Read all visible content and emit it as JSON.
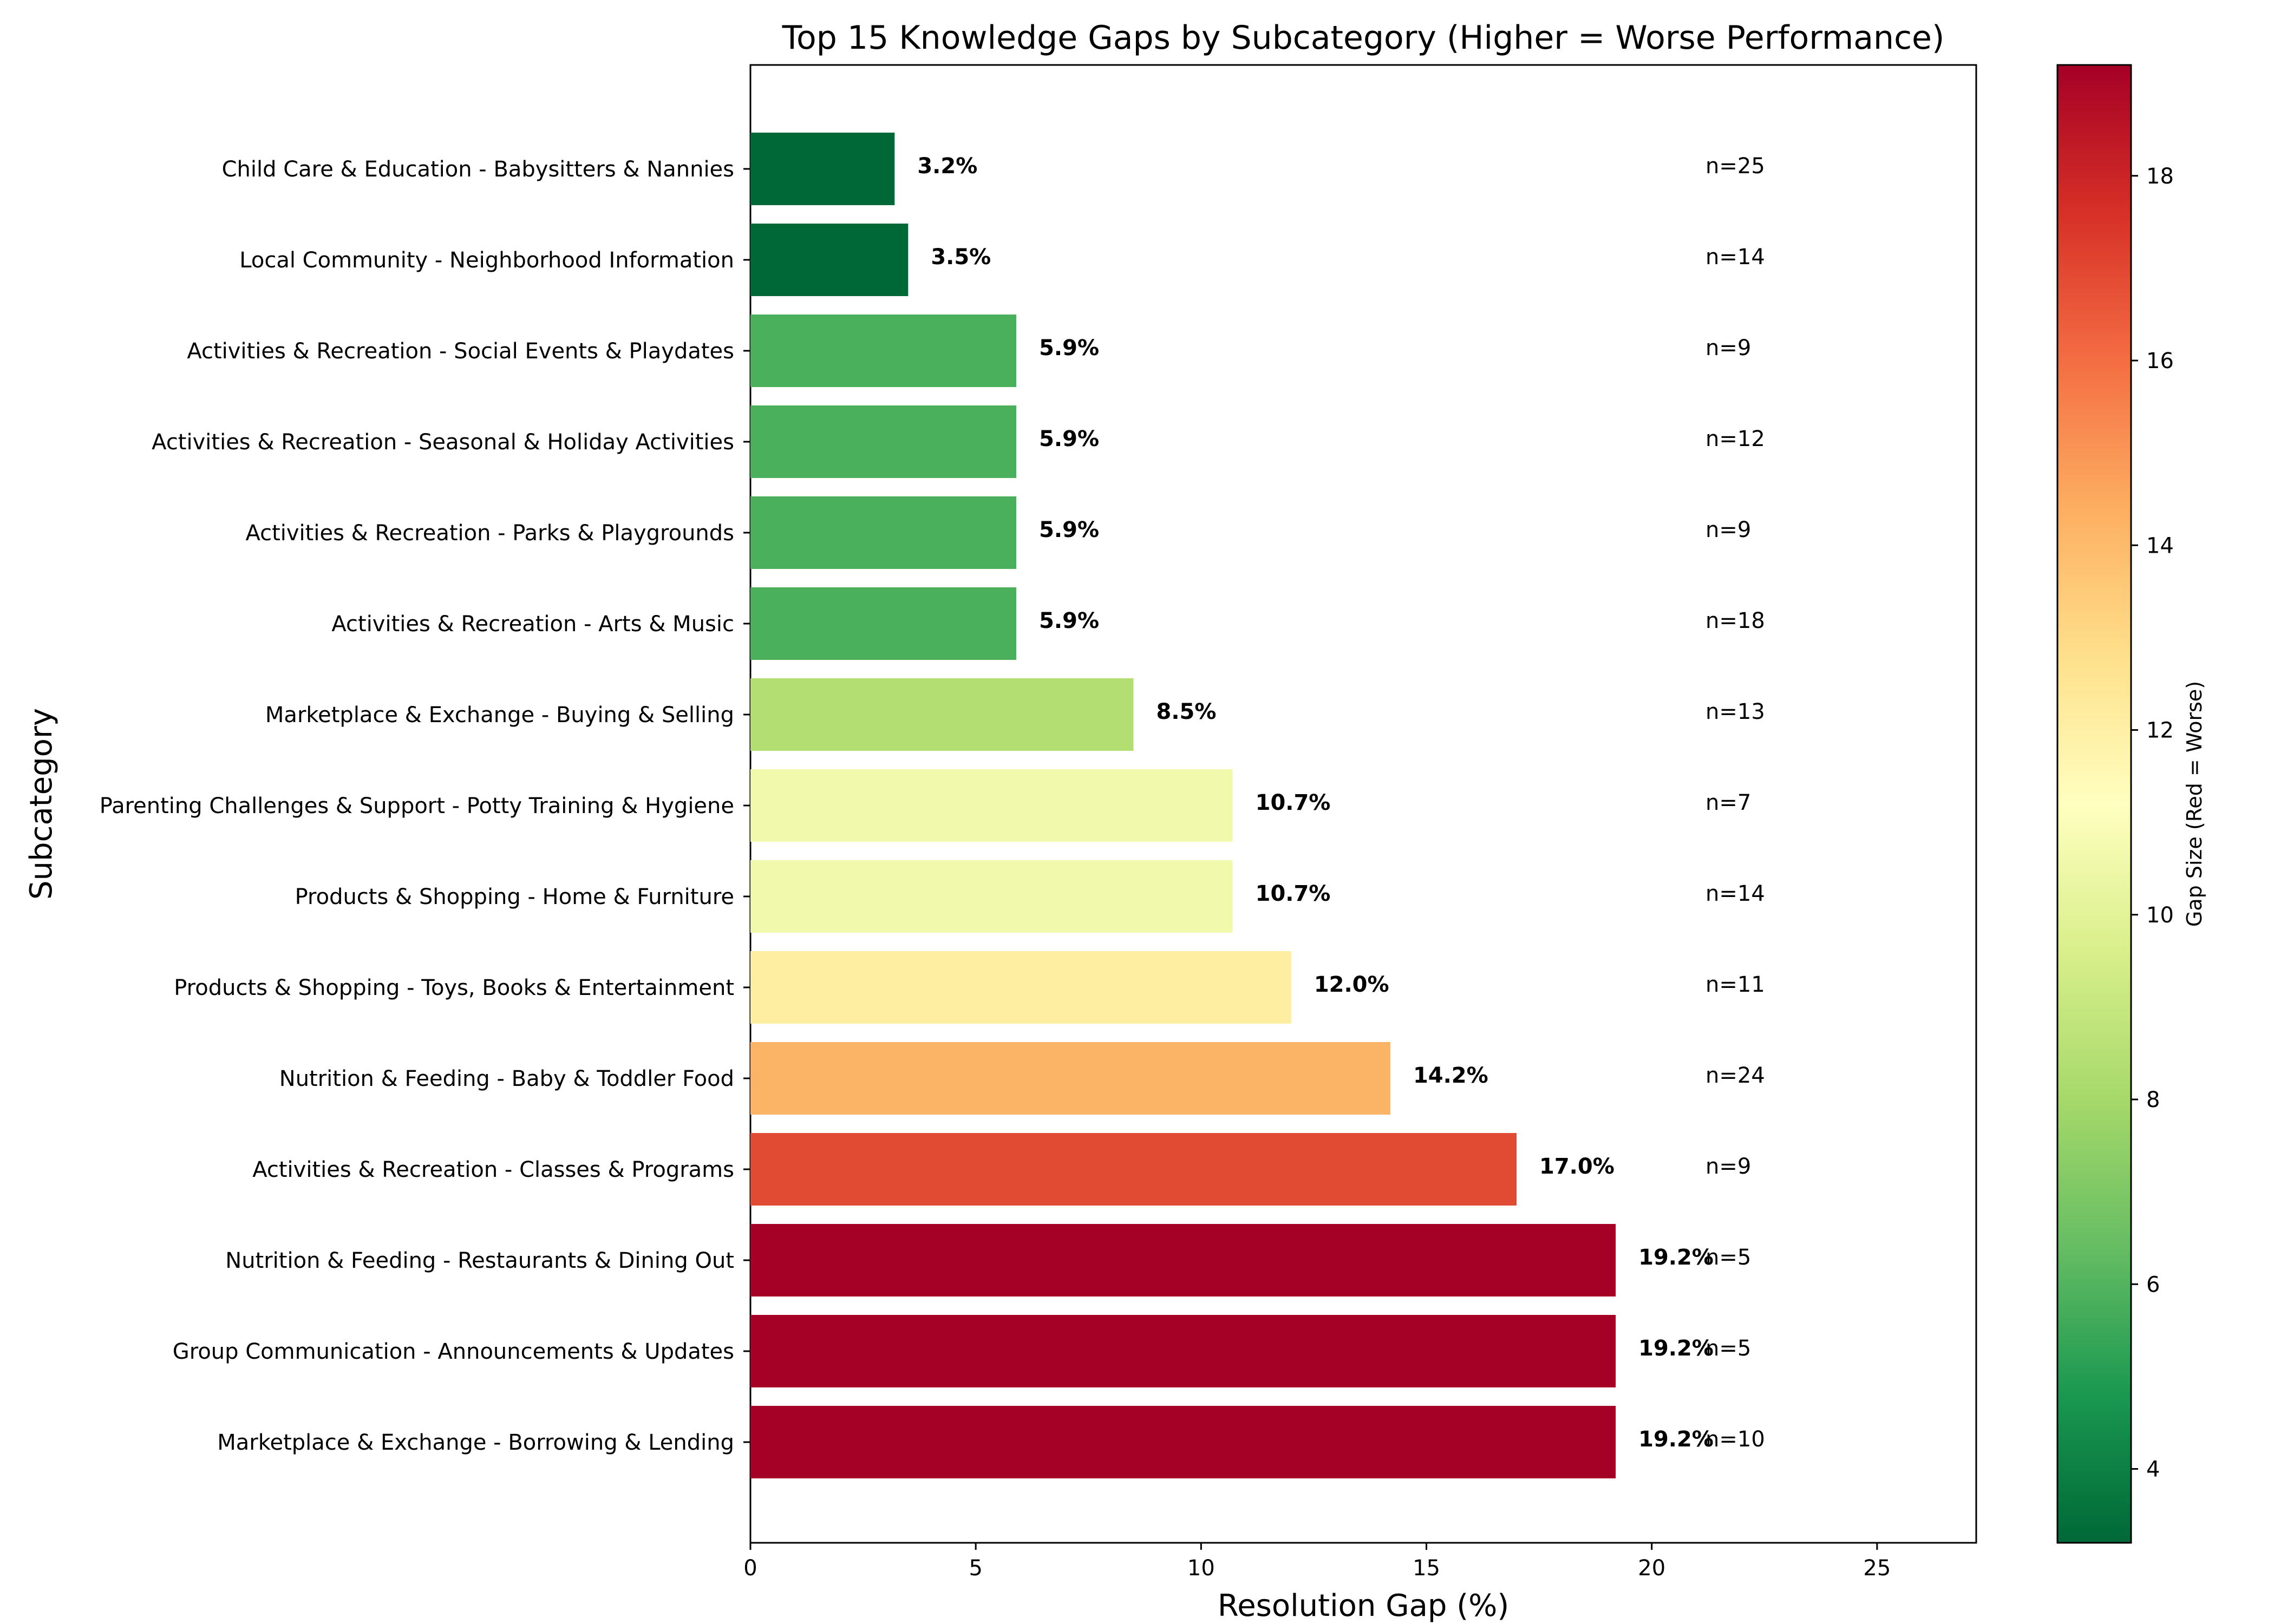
{
  "chart_data": {
    "type": "bar",
    "orientation": "horizontal",
    "title": "Top 15 Knowledge Gaps by Subcategory (Higher = Worse Performance)",
    "xlabel": "Resolution Gap (%)",
    "ylabel": "Subcategory",
    "xlim": [
      0,
      27.2
    ],
    "xticks": [
      "0",
      "5",
      "10",
      "15",
      "20",
      "25"
    ],
    "grid": false,
    "categories": [
      "Child Care & Education - Babysitters & Nannies",
      "Local Community - Neighborhood Information",
      "Activities & Recreation - Social Events & Playdates",
      "Activities & Recreation - Seasonal & Holiday Activities",
      "Activities & Recreation - Parks & Playgrounds",
      "Activities & Recreation - Arts & Music",
      "Marketplace & Exchange - Buying & Selling",
      "Parenting Challenges & Support - Potty Training & Hygiene",
      "Products & Shopping - Home & Furniture",
      "Products & Shopping - Toys, Books & Entertainment",
      "Nutrition & Feeding - Baby & Toddler Food",
      "Activities & Recreation - Classes & Programs",
      "Nutrition & Feeding - Restaurants & Dining Out",
      "Group Communication - Announcements & Updates",
      "Marketplace & Exchange - Borrowing & Lending"
    ],
    "values": [
      3.2,
      3.5,
      5.9,
      5.9,
      5.9,
      5.9,
      8.5,
      10.7,
      10.7,
      12.0,
      14.2,
      17.0,
      19.2,
      19.2,
      19.2
    ],
    "value_labels": [
      "3.2%",
      "3.5%",
      "5.9%",
      "5.9%",
      "5.9%",
      "5.9%",
      "8.5%",
      "10.7%",
      "10.7%",
      "12.0%",
      "14.2%",
      "17.0%",
      "19.2%",
      "19.2%",
      "19.2%"
    ],
    "counts": [
      "n=25",
      "n=14",
      "n=9",
      "n=12",
      "n=9",
      "n=18",
      "n=13",
      "n=7",
      "n=14",
      "n=11",
      "n=24",
      "n=9",
      "n=5",
      "n=5",
      "n=10"
    ],
    "bar_colors": [
      "#006837",
      "#006837",
      "#4bb05c",
      "#4bb05c",
      "#4bb05c",
      "#4bb05c",
      "#b3df72",
      "#f0f9ac",
      "#f0f9ac",
      "#feeea2",
      "#fbb365",
      "#e14a33",
      "#a50026",
      "#a50026",
      "#a50026"
    ],
    "colorbar": {
      "label": "Gap Size (Red = Worse)",
      "range": [
        3.2,
        19.2
      ],
      "ticks": [
        "4",
        "6",
        "8",
        "10",
        "12",
        "14",
        "16",
        "18"
      ],
      "colormap": "RdYlGn_r",
      "stops": [
        "#006837",
        "#1a9850",
        "#66bd63",
        "#a6d96a",
        "#d9ef8b",
        "#ffffbf",
        "#fee08b",
        "#fdae61",
        "#f46d43",
        "#d73027",
        "#a50026"
      ]
    }
  }
}
